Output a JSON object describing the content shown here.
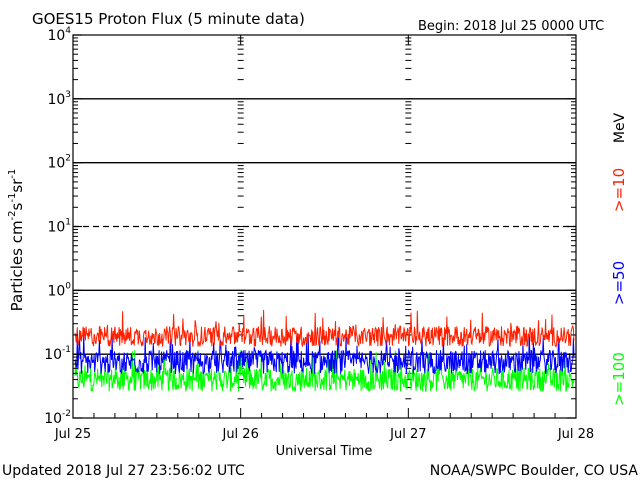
{
  "header": {
    "title": "GOES15 Proton Flux (5 minute data)",
    "begin": "Begin: 2018 Jul 25 0000 UTC"
  },
  "footer": {
    "updated": "Updated 2018 Jul 27 23:56:02 UTC",
    "credit": "NOAA/SWPC Boulder, CO USA"
  },
  "chart_data": {
    "type": "line",
    "title": "GOES15 Proton Flux (5 minute data)",
    "xlabel": "Universal Time",
    "ylabel": "Particles cm-2s-1sr-1",
    "y_scale": "log",
    "ylim": [
      0.01,
      10000
    ],
    "xlim": [
      "2018-07-25",
      "2018-07-28"
    ],
    "x_ticks": [
      "Jul 25",
      "Jul 26",
      "Jul 27",
      "Jul 28"
    ],
    "y_ticks": [
      {
        "base": "10",
        "exp": "-2",
        "value": 0.01
      },
      {
        "base": "10",
        "exp": "-1",
        "value": 0.1
      },
      {
        "base": "10",
        "exp": "0",
        "value": 1
      },
      {
        "base": "10",
        "exp": "1",
        "value": 10
      },
      {
        "base": "10",
        "exp": "2",
        "value": 100
      },
      {
        "base": "10",
        "exp": "3",
        "value": 1000
      },
      {
        "base": "10",
        "exp": "4",
        "value": 10000
      }
    ],
    "solid_gridlines_at": [
      0.1,
      1,
      100,
      1000
    ],
    "dashed_gridlines_at": [
      10
    ],
    "unit_label": "MeV",
    "series": [
      {
        "name": ">=10",
        "color": "#ff2000",
        "low": 0.13,
        "high": 0.5,
        "typical": 0.19
      },
      {
        "name": ">=50",
        "color": "#0000ff",
        "low": 0.045,
        "high": 0.22,
        "typical": 0.075
      },
      {
        "name": ">=100",
        "color": "#00ff00",
        "low": 0.025,
        "high": 0.12,
        "typical": 0.04
      }
    ]
  }
}
